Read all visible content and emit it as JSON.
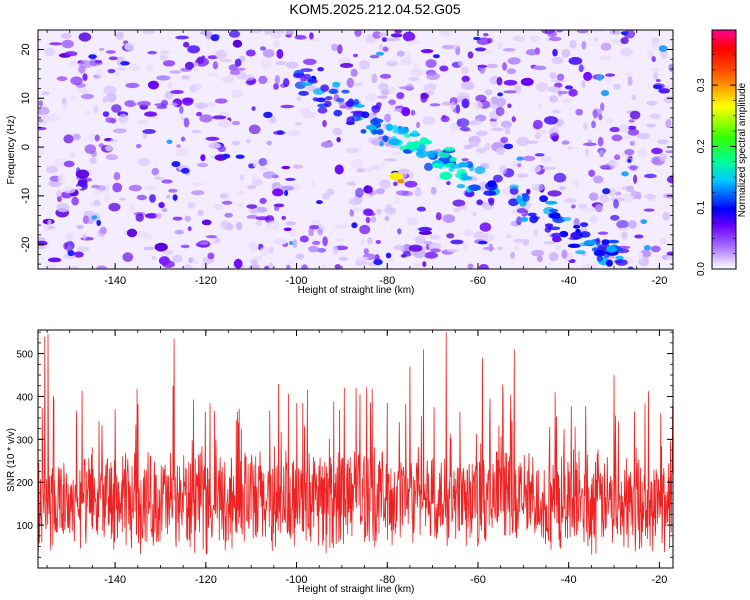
{
  "page_title": "KOM5.2025.212.04.52.G05",
  "chart_data": [
    {
      "type": "heatmap",
      "xlabel": "Height of straight line (km)",
      "ylabel": "Frequency (Hz)",
      "xlim": [
        -157,
        -17
      ],
      "ylim": [
        -25,
        24
      ],
      "x_ticks": [
        -140,
        -120,
        -100,
        -80,
        -60,
        -40,
        -20
      ],
      "y_ticks": [
        -20,
        -10,
        0,
        10,
        20
      ],
      "colorbar": {
        "label": "Normalized spectral amplitude",
        "range": [
          0.0,
          0.39
        ],
        "ticks": [
          0.0,
          0.1,
          0.2,
          0.3
        ],
        "colors": [
          "#ffffff",
          "#cc99ff",
          "#7f00ff",
          "#0000ff",
          "#00ffff",
          "#00ff00",
          "#ffff00",
          "#ff0000",
          "#ff0080"
        ]
      },
      "features": {
        "trail_start": {
          "x": -100,
          "y": 14
        },
        "trail_end": {
          "x": -26,
          "y": -24
        },
        "peak": {
          "x": -78,
          "y": -6,
          "value": 0.3
        }
      },
      "grid": false
    },
    {
      "type": "line",
      "xlabel": "Height of straight line (km)",
      "ylabel": "SNR (10 * v/v)",
      "xlim": [
        -157,
        -17
      ],
      "ylim": [
        0,
        555
      ],
      "x_ticks": [
        -140,
        -120,
        -100,
        -80,
        -60,
        -40,
        -20
      ],
      "y_ticks": [
        100,
        200,
        300,
        400,
        500
      ],
      "color": "#ee2222",
      "baseline_mean": 150,
      "spikes": [
        {
          "x": -155.5,
          "y": 540
        },
        {
          "x": -154.8,
          "y": 545
        },
        {
          "x": -153.5,
          "y": 390
        },
        {
          "x": -140,
          "y": 370
        },
        {
          "x": -127,
          "y": 535
        },
        {
          "x": -113,
          "y": 365
        },
        {
          "x": -86,
          "y": 405
        },
        {
          "x": -80,
          "y": 385
        },
        {
          "x": -75,
          "y": 470
        },
        {
          "x": -72,
          "y": 510
        },
        {
          "x": -67,
          "y": 550
        },
        {
          "x": -59,
          "y": 490
        },
        {
          "x": -52,
          "y": 510
        },
        {
          "x": -43,
          "y": 410
        },
        {
          "x": -30,
          "y": 450
        }
      ],
      "grid": false
    }
  ]
}
